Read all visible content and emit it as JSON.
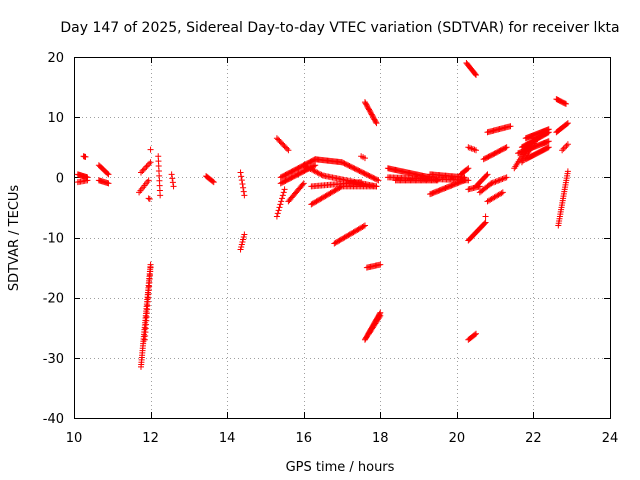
{
  "chart_data": {
    "type": "scatter",
    "title": "Day 147 of 2025, Sidereal Day-to-day VTEC variation (SDTVAR) for receiver lkta",
    "xlabel": "GPS time / hours",
    "ylabel": "SDTVAR / TECUs",
    "xlim": [
      10,
      24
    ],
    "ylim": [
      -40,
      20
    ],
    "xticks": [
      "10",
      "12",
      "14",
      "16",
      "18",
      "20",
      "22",
      "24"
    ],
    "yticks": [
      "20",
      "10",
      "0",
      "-10",
      "-20",
      "-30",
      "-40"
    ],
    "grid": true,
    "marker": "plus",
    "color": "#ff0000",
    "series_segments": [
      {
        "x0": 10.1,
        "y0": 0.5,
        "x1": 10.35,
        "y1": 0.0,
        "n": 12
      },
      {
        "x0": 10.1,
        "y0": -0.8,
        "x1": 10.35,
        "y1": -0.5,
        "n": 8
      },
      {
        "x0": 10.25,
        "y0": 3.5,
        "x1": 10.3,
        "y1": 3.4,
        "n": 3
      },
      {
        "x0": 10.65,
        "y0": 2.0,
        "x1": 10.9,
        "y1": 0.5,
        "n": 10
      },
      {
        "x0": 10.65,
        "y0": -0.5,
        "x1": 10.9,
        "y1": -1.0,
        "n": 10
      },
      {
        "x0": 11.75,
        "y0": 0.8,
        "x1": 12.0,
        "y1": 2.5,
        "n": 8
      },
      {
        "x0": 11.7,
        "y0": -2.5,
        "x1": 11.95,
        "y1": -0.5,
        "n": 8
      },
      {
        "x0": 11.95,
        "y0": -3.5,
        "x1": 11.98,
        "y1": -3.6,
        "n": 2
      },
      {
        "x0": 12.0,
        "y0": 4.6,
        "x1": 12.0,
        "y1": 4.6,
        "n": 1
      },
      {
        "x0": 11.75,
        "y0": -31.5,
        "x1": 12.0,
        "y1": -14.5,
        "n": 45
      },
      {
        "x0": 11.85,
        "y0": -27.0,
        "x1": 12.0,
        "y1": -15.0,
        "n": 20
      },
      {
        "x0": 12.2,
        "y0": 3.5,
        "x1": 12.25,
        "y1": -3.0,
        "n": 9
      },
      {
        "x0": 12.55,
        "y0": 0.5,
        "x1": 12.6,
        "y1": -1.5,
        "n": 4
      },
      {
        "x0": 13.45,
        "y0": 0.2,
        "x1": 13.65,
        "y1": -0.8,
        "n": 9
      },
      {
        "x0": 14.35,
        "y0": 0.8,
        "x1": 14.45,
        "y1": -3.0,
        "n": 7
      },
      {
        "x0": 14.35,
        "y0": -12.0,
        "x1": 14.45,
        "y1": -9.5,
        "n": 7
      },
      {
        "x0": 15.3,
        "y0": 6.5,
        "x1": 15.6,
        "y1": 4.5,
        "n": 10
      },
      {
        "x0": 15.3,
        "y0": -6.5,
        "x1": 15.5,
        "y1": -2.0,
        "n": 10
      },
      {
        "x0": 15.4,
        "y0": -1.0,
        "x1": 16.3,
        "y1": 2.0,
        "n": 30
      },
      {
        "x0": 15.4,
        "y0": 0.0,
        "x1": 16.3,
        "y1": 3.0,
        "n": 30
      },
      {
        "x0": 15.6,
        "y0": -4.0,
        "x1": 16.0,
        "y1": -1.0,
        "n": 15
      },
      {
        "x0": 16.3,
        "y0": 3.0,
        "x1": 17.0,
        "y1": 2.5,
        "n": 25
      },
      {
        "x0": 17.0,
        "y0": 2.5,
        "x1": 17.95,
        "y1": -0.5,
        "n": 30
      },
      {
        "x0": 16.0,
        "y0": 2.0,
        "x1": 16.5,
        "y1": 0.3,
        "n": 15
      },
      {
        "x0": 16.5,
        "y0": 0.3,
        "x1": 17.9,
        "y1": -1.5,
        "n": 40
      },
      {
        "x0": 16.2,
        "y0": -1.5,
        "x1": 17.5,
        "y1": -0.8,
        "n": 35
      },
      {
        "x0": 16.2,
        "y0": -4.5,
        "x1": 17.0,
        "y1": -1.5,
        "n": 25
      },
      {
        "x0": 17.0,
        "y0": -1.5,
        "x1": 17.9,
        "y1": -1.5,
        "n": 25
      },
      {
        "x0": 16.8,
        "y0": -11.0,
        "x1": 17.6,
        "y1": -8.0,
        "n": 25
      },
      {
        "x0": 17.5,
        "y0": 3.5,
        "x1": 17.6,
        "y1": 3.2,
        "n": 3
      },
      {
        "x0": 17.6,
        "y0": 12.5,
        "x1": 17.9,
        "y1": 9.0,
        "n": 18
      },
      {
        "x0": 17.65,
        "y0": -15.0,
        "x1": 18.0,
        "y1": -14.5,
        "n": 12
      },
      {
        "x0": 17.6,
        "y0": -27.0,
        "x1": 18.0,
        "y1": -22.5,
        "n": 25
      },
      {
        "x0": 17.7,
        "y0": -26.0,
        "x1": 18.0,
        "y1": -23.0,
        "n": 15
      },
      {
        "x0": 18.2,
        "y0": 1.5,
        "x1": 19.3,
        "y1": 0.0,
        "n": 40
      },
      {
        "x0": 18.2,
        "y0": 0.0,
        "x1": 20.3,
        "y1": -0.5,
        "n": 60
      },
      {
        "x0": 18.4,
        "y0": -0.5,
        "x1": 19.5,
        "y1": -0.5,
        "n": 35
      },
      {
        "x0": 19.3,
        "y0": 0.5,
        "x1": 20.2,
        "y1": 0.0,
        "n": 30
      },
      {
        "x0": 19.3,
        "y0": -2.8,
        "x1": 20.2,
        "y1": -0.5,
        "n": 30
      },
      {
        "x0": 20.1,
        "y0": 0.5,
        "x1": 20.3,
        "y1": 1.5,
        "n": 8
      },
      {
        "x0": 20.25,
        "y0": 19.0,
        "x1": 20.5,
        "y1": 17.0,
        "n": 12
      },
      {
        "x0": 20.3,
        "y0": 5.0,
        "x1": 20.5,
        "y1": 4.5,
        "n": 6
      },
      {
        "x0": 20.3,
        "y0": -2.0,
        "x1": 20.6,
        "y1": -1.5,
        "n": 10
      },
      {
        "x0": 20.3,
        "y0": -10.5,
        "x1": 20.75,
        "y1": -7.5,
        "n": 20
      },
      {
        "x0": 20.75,
        "y0": -6.5,
        "x1": 20.75,
        "y1": -6.5,
        "n": 1
      },
      {
        "x0": 20.3,
        "y0": -27.0,
        "x1": 20.5,
        "y1": -26.0,
        "n": 8
      },
      {
        "x0": 20.5,
        "y0": -1.5,
        "x1": 20.8,
        "y1": 0.5,
        "n": 12
      },
      {
        "x0": 20.6,
        "y0": -2.5,
        "x1": 20.9,
        "y1": -1.0,
        "n": 10
      },
      {
        "x0": 20.7,
        "y0": 3.0,
        "x1": 21.3,
        "y1": 5.0,
        "n": 20
      },
      {
        "x0": 20.8,
        "y0": 7.5,
        "x1": 21.4,
        "y1": 8.5,
        "n": 20
      },
      {
        "x0": 20.8,
        "y0": -4.0,
        "x1": 21.2,
        "y1": -2.5,
        "n": 12
      },
      {
        "x0": 20.9,
        "y0": -1.0,
        "x1": 21.3,
        "y1": 0.0,
        "n": 12
      },
      {
        "x0": 21.5,
        "y0": 1.5,
        "x1": 21.9,
        "y1": 5.5,
        "n": 15
      },
      {
        "x0": 21.6,
        "y0": 4.0,
        "x1": 22.4,
        "y1": 6.0,
        "n": 30
      },
      {
        "x0": 21.7,
        "y0": 5.0,
        "x1": 22.4,
        "y1": 7.5,
        "n": 30
      },
      {
        "x0": 21.8,
        "y0": 6.5,
        "x1": 22.4,
        "y1": 8.0,
        "n": 25
      },
      {
        "x0": 21.8,
        "y0": 3.0,
        "x1": 22.4,
        "y1": 5.0,
        "n": 25
      },
      {
        "x0": 21.7,
        "y0": 2.5,
        "x1": 22.1,
        "y1": 6.5,
        "n": 15
      },
      {
        "x0": 22.6,
        "y0": 13.0,
        "x1": 22.85,
        "y1": 12.2,
        "n": 10
      },
      {
        "x0": 22.6,
        "y0": 7.5,
        "x1": 22.9,
        "y1": 9.0,
        "n": 12
      },
      {
        "x0": 22.75,
        "y0": 4.5,
        "x1": 22.9,
        "y1": 5.5,
        "n": 5
      },
      {
        "x0": 22.65,
        "y0": -8.0,
        "x1": 22.9,
        "y1": 1.0,
        "n": 25
      }
    ]
  }
}
